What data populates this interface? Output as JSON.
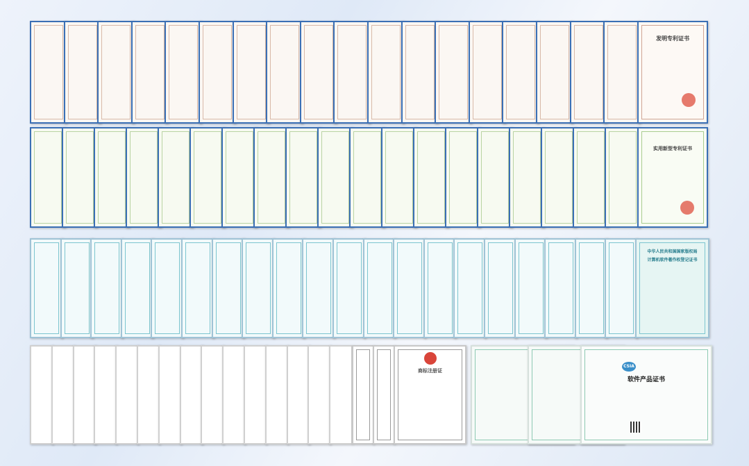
{
  "rows": [
    {
      "title": "发明专利证书"
    },
    {
      "title": "实用新型专利证书"
    },
    {
      "subtitle": "中华人民共和国国家版权局",
      "title": "计算机软件著作权登记证书"
    },
    {
      "title": "商标注册证"
    },
    {
      "badge": "CSIA",
      "title": "软件产品证书"
    }
  ]
}
